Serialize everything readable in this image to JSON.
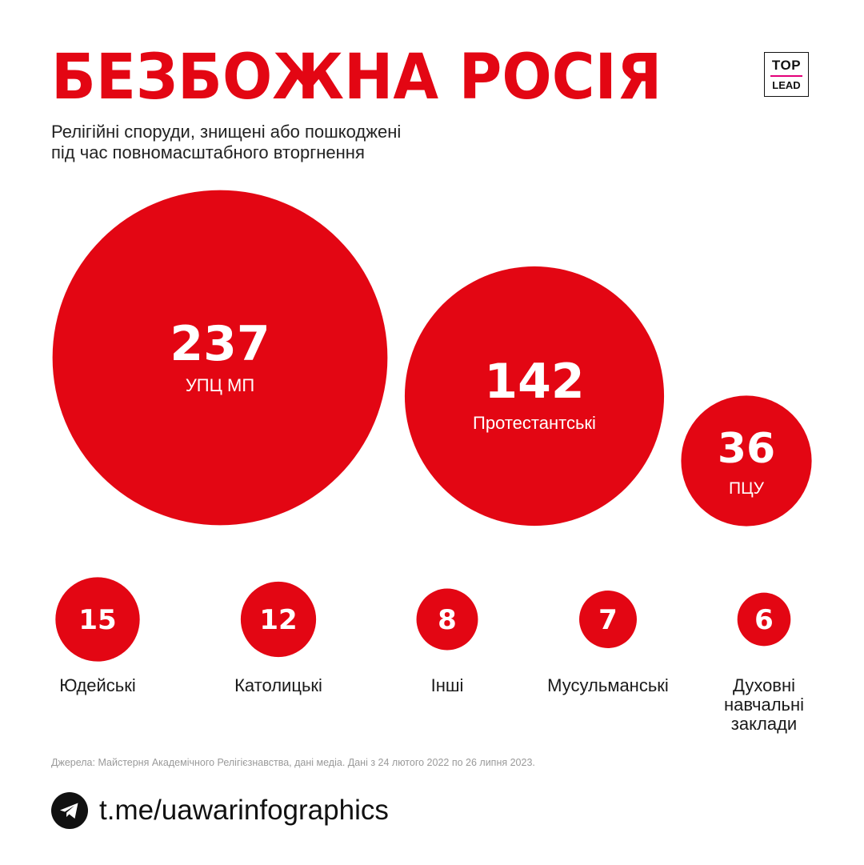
{
  "title": "БЕЗБОЖНА РОСІЯ",
  "logo": {
    "top": "TOP",
    "bottom": "LEAD"
  },
  "subtitle": {
    "line1": "Релігійні споруди, знищені або пошкоджені",
    "line2": "під час повномасштабного вторгнення"
  },
  "colors": {
    "accent": "#e30613",
    "text": "#1a1a1a",
    "muted": "#9a9a9a"
  },
  "chart_data": {
    "type": "bubble",
    "categories": [
      "УПЦ МП",
      "Протестантські",
      "ПЦУ",
      "Юдейські",
      "Католицькі",
      "Інші",
      "Мусульманські",
      "Духовні навчальні заклади"
    ],
    "values": [
      237,
      142,
      36,
      15,
      12,
      8,
      7,
      6
    ],
    "value_labels": [
      "237",
      "142",
      "36",
      "15",
      "12",
      "8",
      "7",
      "6"
    ],
    "category_label_lines": [
      [
        "УПЦ МП"
      ],
      [
        "Протестантські"
      ],
      [
        "ПЦУ"
      ],
      [
        "Юдейські"
      ],
      [
        "Католицькі"
      ],
      [
        "Інші"
      ],
      [
        "Мусульманські"
      ],
      [
        "Духовні",
        "навчальні",
        "заклади"
      ]
    ]
  },
  "source": "Джерела: Майстерня Академічного Релігієзнавства, дані медіа. Дані з 24 лютого 2022 по 26 липня 2023.",
  "footer": {
    "link": "t.me/uawarinfographics",
    "icon": "telegram-icon"
  }
}
